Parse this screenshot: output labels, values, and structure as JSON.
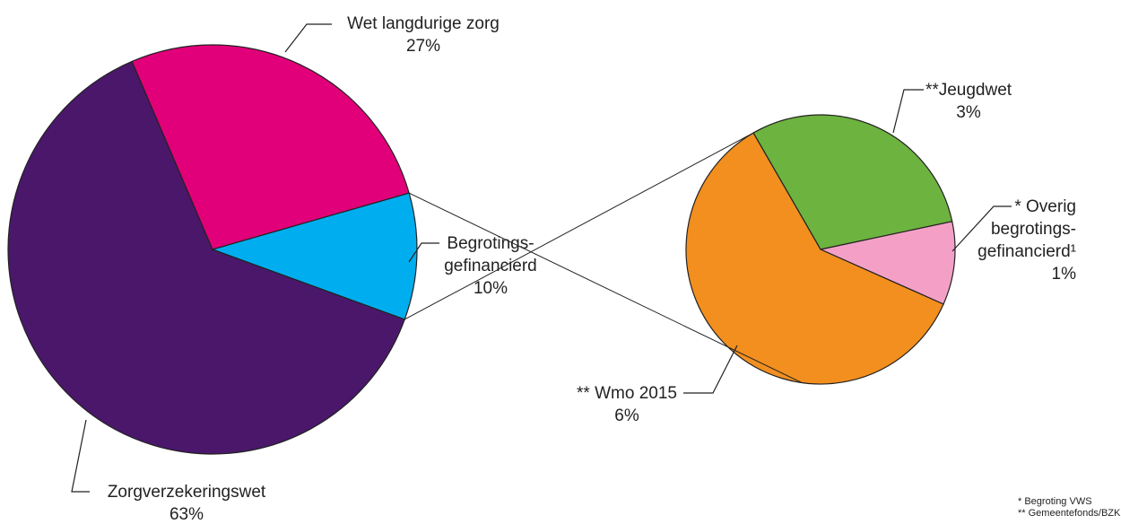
{
  "chart_data": [
    {
      "type": "pie",
      "categories": [
        "Zorgverzekeringswet",
        "Wet langdurige zorg",
        "Begrotings-\ngefinancierd"
      ],
      "values": [
        63,
        27,
        10
      ],
      "value_labels": [
        "63%",
        "27%",
        "10%"
      ],
      "colors": [
        "#4a176b",
        "#e2007a",
        "#00aeef"
      ]
    },
    {
      "type": "pie",
      "categories": [
        "**Jeugdwet",
        "* Overig\nbegrotings-\ngefinancierd¹",
        "** Wmo 2015"
      ],
      "values": [
        3,
        1,
        6
      ],
      "value_labels": [
        "3%",
        "1%",
        "6%"
      ],
      "colors": [
        "#6db33f",
        "#f4a0c6",
        "#f28f1f"
      ]
    }
  ],
  "notes": [
    "* Begroting VWS",
    "** Gemeentefonds/BZK"
  ]
}
